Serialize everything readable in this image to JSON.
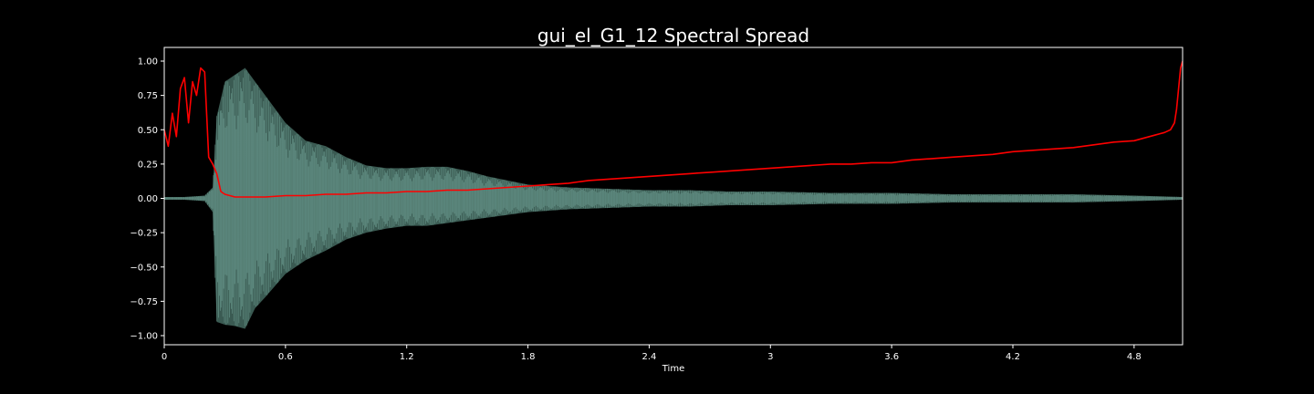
{
  "chart_data": {
    "type": "line",
    "title": "gui_el_G1_12 Spectral Spread",
    "xlabel": "Time",
    "ylabel": "",
    "xlim": [
      0,
      5.04
    ],
    "ylim": [
      -1.1,
      1.1
    ],
    "x_ticks": [
      "0",
      "0.6",
      "1.2",
      "1.8",
      "2.4",
      "3",
      "3.6",
      "4.2",
      "4.8"
    ],
    "y_ticks": [
      "1.00",
      "0.75",
      "0.50",
      "0.25",
      "0.00",
      "−0.25",
      "−0.50",
      "−0.75",
      "−1.00"
    ],
    "grid": false,
    "colors": {
      "background": "#000000",
      "axes": "#ffffff",
      "waveform_fill": "#3a5a52",
      "waveform_line": "#6a9a8e",
      "spread_line": "#ff0000"
    },
    "series": [
      {
        "style": "waveform envelope",
        "x": [
          0,
          0.1,
          0.2,
          0.24,
          0.26,
          0.3,
          0.35,
          0.4,
          0.45,
          0.5,
          0.6,
          0.7,
          0.8,
          0.9,
          1.0,
          1.1,
          1.2,
          1.3,
          1.4,
          1.5,
          1.6,
          1.7,
          1.8,
          2.0,
          2.2,
          2.4,
          2.6,
          2.8,
          3.0,
          3.3,
          3.6,
          3.9,
          4.2,
          4.5,
          4.8,
          5.04
        ],
        "upper": [
          0.01,
          0.01,
          0.02,
          0.08,
          0.6,
          0.85,
          0.9,
          0.95,
          0.85,
          0.75,
          0.55,
          0.42,
          0.38,
          0.3,
          0.24,
          0.22,
          0.22,
          0.23,
          0.23,
          0.2,
          0.16,
          0.13,
          0.1,
          0.08,
          0.07,
          0.06,
          0.06,
          0.05,
          0.05,
          0.04,
          0.04,
          0.03,
          0.03,
          0.03,
          0.02,
          0.01
        ],
        "lower": [
          -0.01,
          -0.01,
          -0.02,
          -0.1,
          -0.9,
          -0.92,
          -0.93,
          -0.95,
          -0.8,
          -0.72,
          -0.55,
          -0.45,
          -0.38,
          -0.3,
          -0.25,
          -0.22,
          -0.2,
          -0.2,
          -0.18,
          -0.16,
          -0.14,
          -0.12,
          -0.1,
          -0.08,
          -0.07,
          -0.06,
          -0.06,
          -0.05,
          -0.05,
          -0.04,
          -0.04,
          -0.03,
          -0.03,
          -0.03,
          -0.02,
          -0.01
        ]
      },
      {
        "style": "line",
        "x": [
          0,
          0.02,
          0.04,
          0.06,
          0.08,
          0.1,
          0.12,
          0.14,
          0.16,
          0.18,
          0.2,
          0.22,
          0.24,
          0.26,
          0.28,
          0.3,
          0.35,
          0.4,
          0.5,
          0.6,
          0.7,
          0.8,
          0.9,
          1.0,
          1.1,
          1.2,
          1.3,
          1.4,
          1.5,
          1.6,
          1.7,
          1.8,
          1.9,
          2.0,
          2.1,
          2.2,
          2.3,
          2.4,
          2.5,
          2.6,
          2.7,
          2.8,
          2.9,
          3.0,
          3.1,
          3.2,
          3.3,
          3.4,
          3.5,
          3.6,
          3.7,
          3.8,
          3.9,
          4.0,
          4.1,
          4.2,
          4.3,
          4.4,
          4.5,
          4.6,
          4.7,
          4.8,
          4.85,
          4.9,
          4.95,
          4.98,
          5.0,
          5.01,
          5.02,
          5.03,
          5.04
        ],
        "y": [
          0.5,
          0.38,
          0.62,
          0.45,
          0.8,
          0.88,
          0.55,
          0.85,
          0.75,
          0.95,
          0.92,
          0.3,
          0.25,
          0.18,
          0.05,
          0.03,
          0.01,
          0.01,
          0.01,
          0.02,
          0.02,
          0.03,
          0.03,
          0.04,
          0.04,
          0.05,
          0.05,
          0.06,
          0.06,
          0.07,
          0.08,
          0.09,
          0.1,
          0.11,
          0.13,
          0.14,
          0.15,
          0.16,
          0.17,
          0.18,
          0.19,
          0.2,
          0.21,
          0.22,
          0.23,
          0.24,
          0.25,
          0.25,
          0.26,
          0.26,
          0.28,
          0.29,
          0.3,
          0.31,
          0.32,
          0.34,
          0.35,
          0.36,
          0.37,
          0.39,
          0.41,
          0.42,
          0.44,
          0.46,
          0.48,
          0.5,
          0.55,
          0.65,
          0.8,
          0.95,
          1.0
        ]
      }
    ]
  }
}
